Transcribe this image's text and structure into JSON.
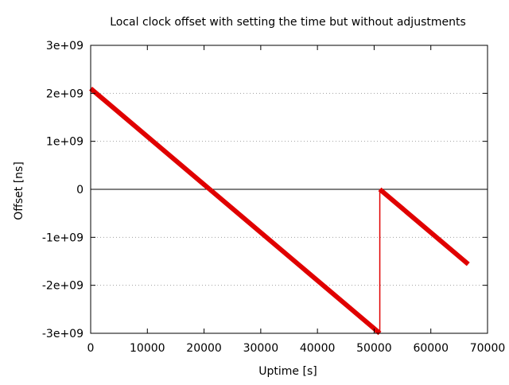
{
  "chart_data": {
    "type": "line",
    "title": "Local clock offset with setting the time but without adjustments",
    "xlabel": "Uptime [s]",
    "ylabel": "Offset [ns]",
    "xlim": [
      0,
      70000
    ],
    "ylim": [
      -3000000000,
      3000000000
    ],
    "x_ticks": [
      0,
      10000,
      20000,
      30000,
      40000,
      50000,
      60000,
      70000
    ],
    "x_tick_labels": [
      "0",
      "10000",
      "20000",
      "30000",
      "40000",
      "50000",
      "60000",
      "70000"
    ],
    "y_ticks": [
      -3000000000,
      -2000000000,
      -1000000000,
      0,
      1000000000,
      2000000000,
      3000000000
    ],
    "y_tick_labels": [
      "-3e+09",
      "-2e+09",
      "-1e+09",
      "0",
      "1e+09",
      "2e+09",
      "3e+09"
    ],
    "grid": "horizontal dotted",
    "zero_line": true,
    "series": [
      {
        "color": "#e00000",
        "x": [
          0,
          21000,
          51000,
          51000,
          66600
        ],
        "y": [
          2100000000,
          0,
          -3000000000,
          0,
          -1560000000
        ]
      }
    ]
  }
}
